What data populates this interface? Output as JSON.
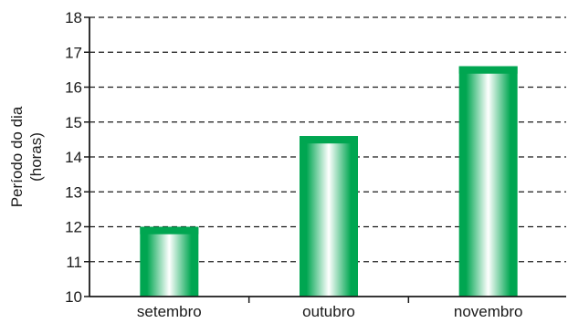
{
  "chart_data": {
    "type": "bar",
    "categories": [
      "setembro",
      "outubro",
      "novembro"
    ],
    "values": [
      12.0,
      14.6,
      16.6
    ],
    "title": "",
    "xlabel": "",
    "ylabel_lines": [
      "Período do dia",
      "(horas)"
    ],
    "ylim": [
      10,
      18
    ],
    "yticks": [
      "10",
      "11",
      "12",
      "13",
      "14",
      "15",
      "16",
      "17",
      "18"
    ],
    "grid": "dashed-horizontal",
    "legend": "none",
    "colors": {
      "bar_dark": "#00a651",
      "bar_light": "#ffffff",
      "axis": "#1a1a1a",
      "grid": "#1a1a1a"
    }
  }
}
